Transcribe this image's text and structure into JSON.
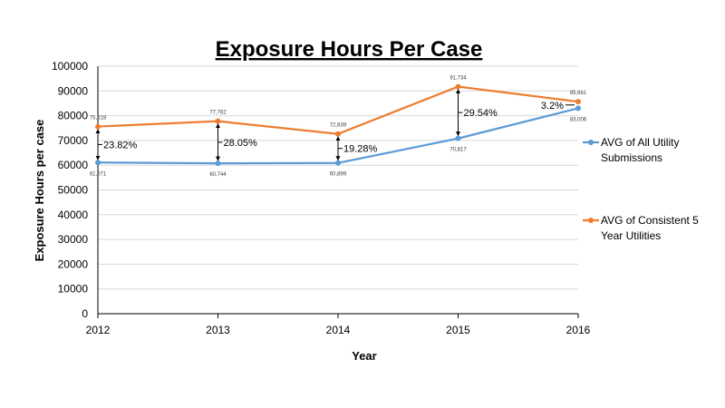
{
  "chart_data": {
    "type": "line",
    "title": "Exposure Hours Per Case",
    "xlabel": "Year",
    "ylabel": "Exposure Hours per case",
    "categories": [
      "2012",
      "2013",
      "2014",
      "2015",
      "2016"
    ],
    "ylim": [
      0,
      100000
    ],
    "yticks": [
      "0",
      "10000",
      "20000",
      "30000",
      "40000",
      "50000",
      "60000",
      "70000",
      "80000",
      "90000",
      "100000"
    ],
    "grid": true,
    "legend_position": "right",
    "series": [
      {
        "name": "AVG of All Utility Submissions",
        "legend_lines": [
          "AVG of All Utility",
          "Submissions"
        ],
        "color": "#5B9BD5",
        "values": [
          61071,
          60744,
          60899,
          70817,
          83006
        ],
        "labels": [
          "61,071",
          "60,744",
          "60,899",
          "70,817",
          "83,006"
        ]
      },
      {
        "name": "AVG of Consistent 5 Year Utilities",
        "legend_lines": [
          "AVG of Consistent 5",
          "Year Utilities"
        ],
        "color": "#ED7D31",
        "values": [
          75618,
          77782,
          72639,
          91734,
          85661
        ],
        "labels": [
          "75,618",
          "77,782",
          "72,639",
          "91,734",
          "85,661"
        ]
      }
    ],
    "annotations": [
      "23.82%",
      "28.05%",
      "19.28%",
      "29.54%",
      "3.2%"
    ]
  }
}
